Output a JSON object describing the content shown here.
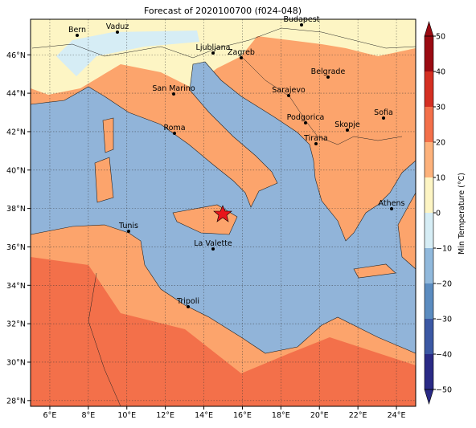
{
  "title": "Forecast of 2020100700 (f024-048)",
  "cities": [
    "Bern",
    "Vaduz",
    "Ljubljana",
    "Zagreb",
    "Budapest",
    "Belgrade",
    "Sarajevo",
    "San Marino",
    "Roma",
    "Podgorica",
    "Skopje",
    "Sofia",
    "Tirana",
    "Athens",
    "Tunis",
    "La Valette",
    "Tripoli"
  ],
  "lon_lim": [
    5,
    25
  ],
  "lat_lim": [
    27.7,
    47.85
  ],
  "lon_ticks": [
    {
      "value": 6,
      "label": "6°E"
    },
    {
      "value": 8,
      "label": "8°E"
    },
    {
      "value": 10,
      "label": "10°E"
    },
    {
      "value": 12,
      "label": "12°E"
    },
    {
      "value": 14,
      "label": "14°E"
    },
    {
      "value": 16,
      "label": "16°E"
    },
    {
      "value": 18,
      "label": "18°E"
    },
    {
      "value": 20,
      "label": "20°E"
    },
    {
      "value": 22,
      "label": "22°E"
    },
    {
      "value": 24,
      "label": "24°E"
    }
  ],
  "lat_ticks": [
    {
      "value": 28,
      "label": "28°N"
    },
    {
      "value": 30,
      "label": "30°N"
    },
    {
      "value": 32,
      "label": "32°N"
    },
    {
      "value": 34,
      "label": "34°N"
    },
    {
      "value": 36,
      "label": "36°N"
    },
    {
      "value": 38,
      "label": "38°N"
    },
    {
      "value": 40,
      "label": "40°N"
    },
    {
      "value": 42,
      "label": "42°N"
    },
    {
      "value": 44,
      "label": "44°N"
    },
    {
      "value": 46,
      "label": "46°N"
    }
  ],
  "colorbar": {
    "label": "Min Temperature (°C)",
    "lim": [
      -50,
      50
    ],
    "ticks": [
      {
        "value": -50,
        "label": "−50"
      },
      {
        "value": -40,
        "label": "−40"
      },
      {
        "value": -30,
        "label": "−30"
      },
      {
        "value": -20,
        "label": "−20"
      },
      {
        "value": -10,
        "label": "−10"
      },
      0,
      10,
      20,
      30,
      40,
      50
    ],
    "colors": [
      "#2a2a86",
      "#3b58a4",
      "#5b8cc0",
      "#91b9dc",
      "#d6edf5",
      "#fdf5c4",
      "#fdb27c",
      "#f3704a",
      "#d42f22",
      "#9a0a12"
    ]
  }
}
